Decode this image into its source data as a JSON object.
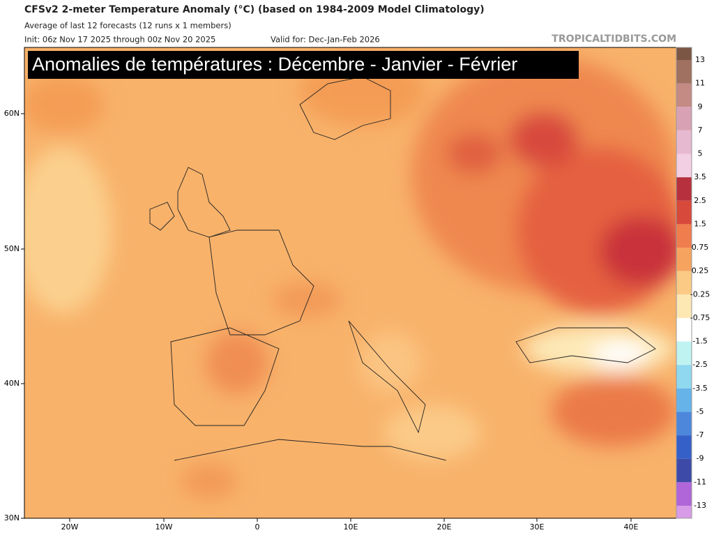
{
  "header": {
    "title": "CFSv2 2-meter Temperature Anomaly (°C) (based on 1984-2009 Model Climatology)",
    "subtitle": "Average of last 12 forecasts (12 runs x 1 members)",
    "init": "Init: 06z Nov 17 2025 through 00z Nov 20 2025",
    "valid": "Valid for: Dec-Jan-Feb 2026",
    "watermark": "TROPICALTIDBITS.COM"
  },
  "overlay_title": "Anomalies de températures : Décembre - Janvier - Février",
  "map": {
    "lat_labels": [
      "60N",
      "50N",
      "40N",
      "30N"
    ],
    "lon_labels": [
      "20W",
      "10W",
      "0",
      "10E",
      "20E",
      "30E",
      "40E"
    ]
  },
  "colorbar": {
    "labels": [
      "13",
      "11",
      "9",
      "7",
      "5",
      "3.5",
      "2.5",
      "1.5",
      "0.75",
      "0.25",
      "-0.25",
      "-0.75",
      "-1.5",
      "-2.5",
      "-3.5",
      "-5",
      "-7",
      "-9",
      "-11",
      "-13"
    ]
  }
}
